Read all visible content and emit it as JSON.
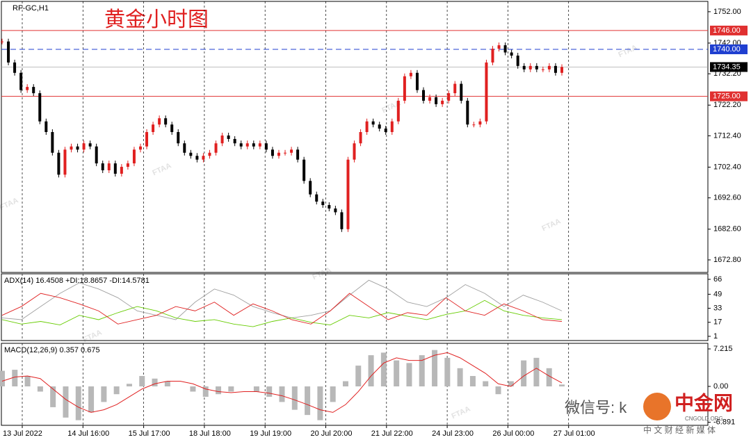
{
  "chart_data": [
    {
      "type": "candlestick",
      "title": "黄金小时图",
      "symbol": "RF-GC,H1",
      "watermark": "FTAA",
      "up_color": "#e02020",
      "down_color": "#000000",
      "close": [
        1742.5,
        1735.8,
        1732.5,
        1727,
        1728,
        1726,
        1717,
        1713.6,
        1707,
        1700,
        1708,
        1709,
        1708,
        1710,
        1709,
        1703.6,
        1701.4,
        1703.6,
        1700.3,
        1702.5,
        1703.6,
        1708,
        1709,
        1713.6,
        1716,
        1718,
        1716,
        1713.6,
        1710,
        1707,
        1706,
        1704.8,
        1706,
        1707,
        1710,
        1712.5,
        1711.4,
        1710,
        1709,
        1710,
        1709,
        1710,
        1708,
        1706,
        1707,
        1707,
        1708,
        1704.8,
        1698,
        1693.7,
        1691.4,
        1690.3,
        1689.2,
        1688,
        1682.6,
        1704.8,
        1710,
        1713.6,
        1717,
        1716,
        1714.7,
        1713.6,
        1717,
        1723.6,
        1731.4,
        1732.5,
        1727,
        1723.6,
        1724.7,
        1722.5,
        1723.6,
        1726,
        1729,
        1723.6,
        1716,
        1716,
        1717,
        1735.8,
        1740.2,
        1741.3,
        1739,
        1738,
        1734.7,
        1733.6,
        1734.7,
        1733.6,
        1733.6,
        1734.7,
        1732.5,
        1734.35
      ],
      "ylim": [
        1668.8,
        1755.3
      ],
      "yticks": [
        {
          "value": 1752,
          "label": "1752.00"
        },
        {
          "value": 1742,
          "label": "1742.00"
        },
        {
          "value": 1732.2,
          "label": "1732.20"
        },
        {
          "value": 1722.2,
          "label": "1722.20"
        },
        {
          "value": 1712.4,
          "label": "1712.40"
        },
        {
          "value": 1702.4,
          "label": "1702.40"
        },
        {
          "value": 1692.6,
          "label": "1692.60"
        },
        {
          "value": 1682.6,
          "label": "1682.60"
        },
        {
          "value": 1672.8,
          "label": "1672.80"
        }
      ],
      "levels": [
        {
          "value": 1746,
          "label": "1746.00",
          "color": "#e03030"
        },
        {
          "value": 1740,
          "label": "1740.00",
          "color": "#1f3fd0"
        },
        {
          "value": 1734.35,
          "label": "1734.35",
          "color": "#000000"
        },
        {
          "value": 1725,
          "label": "1725.00",
          "color": "#e03030"
        }
      ],
      "x_labels": [
        "13 Jul 2022",
        "14 Jul 16:00",
        "15 Jul 17:00",
        "18 Jul 18:00",
        "19 Jul 19:00",
        "20 Jul 20:00",
        "21 Jul 22:00",
        "24 Jul 23:00",
        "26 Jul 00:00",
        "27 Jul 01:00"
      ],
      "wechat": "微信号: k",
      "logo": "中金网",
      "logo_sub": "CNGOLD.ORG",
      "tagline": "中 文 财 经 新 媒 体"
    },
    {
      "type": "line",
      "title": "ADX(14) 16.4508 +DI:18.8657 -DI:14.5781",
      "ylim": [
        -3.8,
        72.3
      ],
      "yticks": [
        66,
        49,
        33,
        17,
        1
      ],
      "series": [
        {
          "color": "#a0a0a0",
          "values": [
            22,
            20,
            35,
            50,
            62,
            55,
            45,
            30,
            25,
            20,
            40,
            55,
            48,
            35,
            28,
            22,
            25,
            30,
            48,
            65,
            55,
            40,
            35,
            45,
            60,
            50,
            35,
            48,
            40,
            30
          ]
        },
        {
          "color": "#66cc00",
          "values": [
            20,
            15,
            18,
            14,
            25,
            20,
            28,
            35,
            30,
            22,
            18,
            20,
            15,
            12,
            18,
            22,
            17,
            14,
            25,
            22,
            28,
            24,
            20,
            26,
            30,
            42,
            30,
            25,
            22,
            20
          ]
        },
        {
          "color": "#e02020",
          "values": [
            25,
            35,
            50,
            45,
            38,
            30,
            15,
            20,
            25,
            35,
            30,
            40,
            25,
            38,
            30,
            20,
            15,
            30,
            50,
            35,
            20,
            28,
            25,
            45,
            30,
            25,
            38,
            30,
            20,
            18
          ]
        }
      ]
    },
    {
      "type": "macd",
      "title": "MACD(12,26,9) 0.357 0.675",
      "ylim": [
        -7.49,
        8.29
      ],
      "yticks": [
        7.215,
        {
          "value": 0,
          "label": "0.00"
        },
        -6.891
      ],
      "hist_color": "#b8b8b8",
      "signal_color": "#e02020",
      "hist": [
        3,
        3.2,
        2,
        -1,
        -4,
        -6,
        -6.5,
        -5,
        -3,
        -1.5,
        0.5,
        2,
        1.5,
        1,
        0,
        -1,
        -2,
        -1.5,
        -1,
        0,
        -1,
        -2,
        -3,
        -4.5,
        -5.5,
        -6.5,
        -3,
        1,
        4,
        6,
        6.5,
        5,
        4.5,
        6,
        7,
        5.5,
        3.5,
        2,
        1,
        -1.5,
        1,
        5,
        5.5,
        3.5,
        0.357
      ],
      "signal": [
        1,
        1.8,
        2,
        1.5,
        -0.5,
        -2.5,
        -4,
        -5,
        -4.5,
        -3.5,
        -2,
        -0.5,
        0.5,
        1,
        1,
        0.5,
        -0.5,
        -1,
        -1.2,
        -1,
        -1,
        -1.3,
        -1.8,
        -2.6,
        -3.5,
        -4.5,
        -5,
        -3.5,
        -1,
        2,
        4.5,
        5.5,
        5,
        5,
        6,
        6.5,
        5.5,
        4,
        2.5,
        0.5,
        0,
        2,
        3.5,
        2,
        0.675
      ]
    }
  ]
}
